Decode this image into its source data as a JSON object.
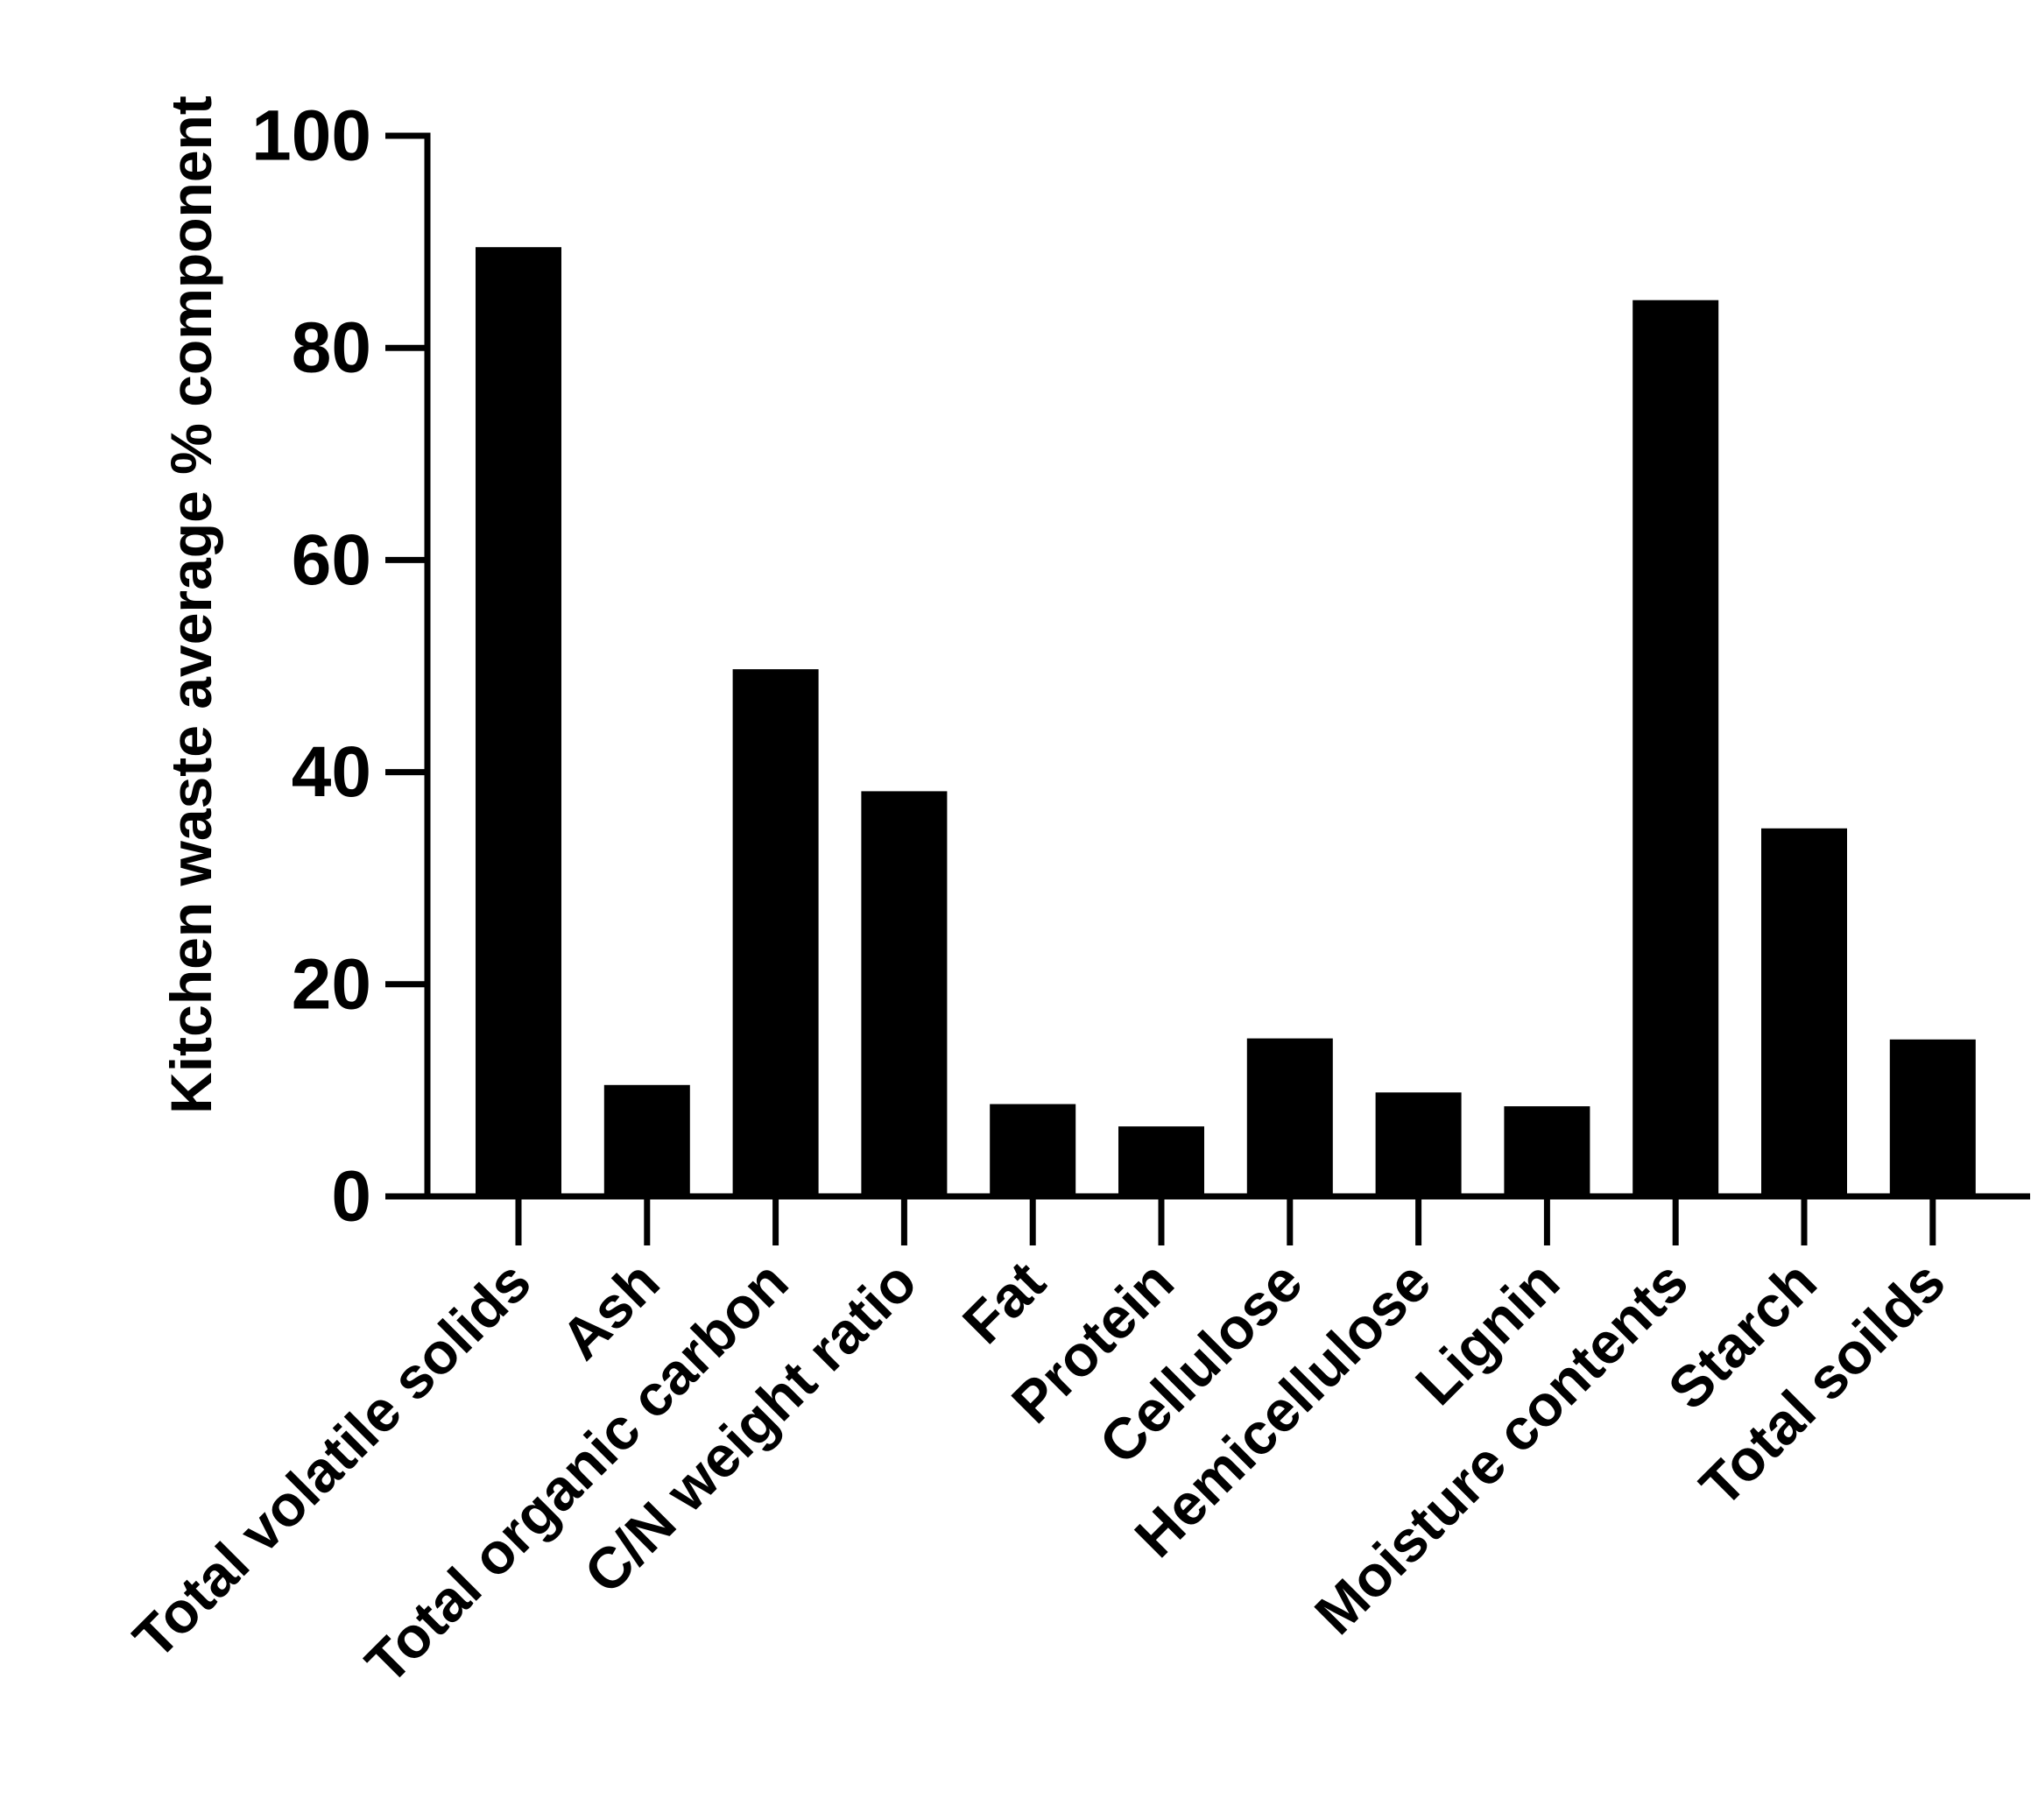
{
  "chart_data": {
    "type": "bar",
    "title": "",
    "xlabel": "",
    "ylabel": "Kitchen waste average % component",
    "ylim": [
      0,
      100
    ],
    "yticks": [
      0,
      20,
      40,
      60,
      80,
      100
    ],
    "grid": false,
    "legend": "none",
    "bar_color": "#000000",
    "categories": [
      "Total volatile solids",
      "Ash",
      "Total organic carbon",
      "C/N weight ratio",
      "Fat",
      "Protein",
      "Cellulose",
      "Hemicellulose",
      "Lignin",
      "Moisture contents",
      "Starch",
      "Total soilds"
    ],
    "values": [
      89.5,
      10.5,
      49.7,
      38.2,
      8.7,
      6.6,
      14.9,
      9.8,
      8.5,
      84.5,
      34.7,
      14.8
    ]
  }
}
